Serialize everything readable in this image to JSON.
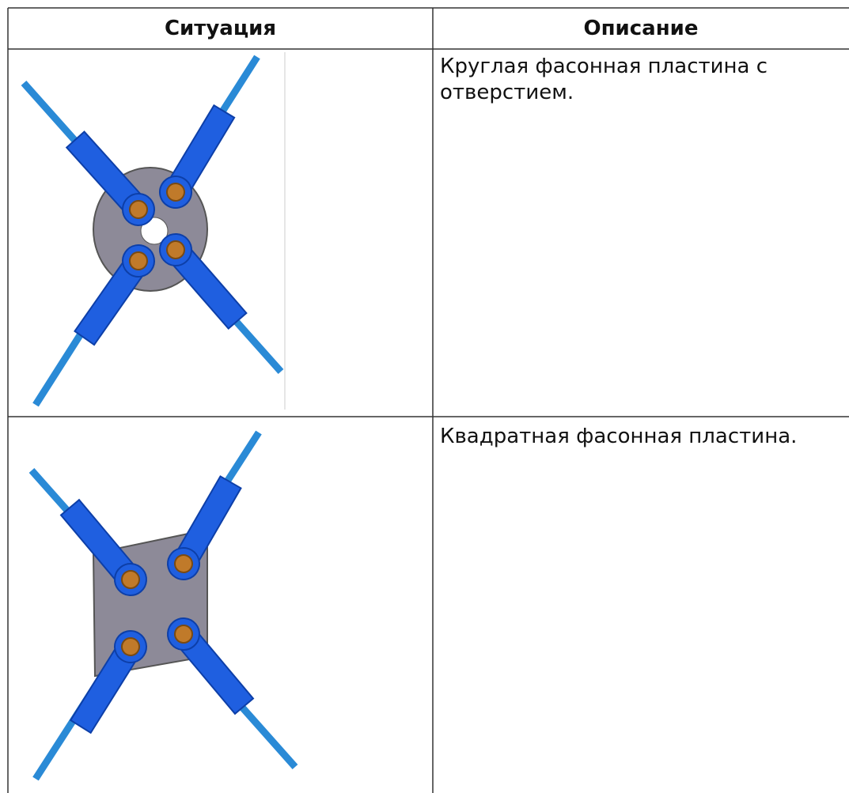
{
  "table": {
    "header": [
      "Ситуация",
      "Описание"
    ],
    "rows": [
      {
        "description": "Круглая фасонная пластина с отверстием."
      },
      {
        "description": "Квадратная фасонная пластина."
      }
    ]
  }
}
